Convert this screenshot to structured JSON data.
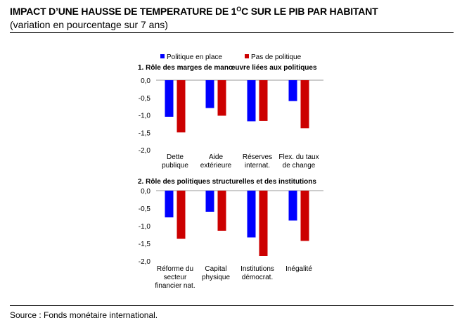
{
  "header": {
    "title": "IMPACT D’UNE HAUSSE DE TEMPERATURE DE 1",
    "title_degree": "O",
    "title_end": "C SUR LE PIB PAR HABITANT",
    "subtitle": "(variation en pourcentage sur 7 ans)"
  },
  "footer": {
    "source": "Source : Fonds monétaire international."
  },
  "colors": {
    "politique": "#0000FF",
    "pas_de_politique": "#CC0000"
  },
  "chart_data": [
    {
      "type": "bar",
      "title": "1. Rôle des marges de manœuvre liées aux politiques",
      "categories": [
        [
          "Dette",
          "publique"
        ],
        [
          "Aide",
          "extérieure"
        ],
        [
          "Réserves",
          "internat."
        ],
        [
          "Flex. du taux",
          "de change"
        ]
      ],
      "series": [
        {
          "name": "Politique en place",
          "color": "#0000FF",
          "values": [
            -1.05,
            -0.8,
            -1.18,
            -0.6
          ]
        },
        {
          "name": "Pas de politique",
          "color": "#CC0000",
          "values": [
            -1.5,
            -1.02,
            -1.17,
            -1.38
          ]
        }
      ],
      "ylim": [
        -2.0,
        0.0
      ],
      "yticks": [
        "0,0",
        "-0,5",
        "-1,0",
        "-1,5",
        "-2,0"
      ],
      "ytick_values": [
        0,
        -0.5,
        -1.0,
        -1.5,
        -2.0
      ],
      "legend": "top-center",
      "grid": false
    },
    {
      "type": "bar",
      "title": "2. Rôle des politiques structurelles et des institutions",
      "categories": [
        [
          "Réforme du",
          "secteur",
          "financier nat."
        ],
        [
          "Capital",
          "physique"
        ],
        [
          "Institutions",
          "démocrat."
        ],
        [
          "Inégalité"
        ]
      ],
      "series": [
        {
          "name": "Politique en place",
          "color": "#0000FF",
          "values": [
            -0.76,
            -0.6,
            -1.33,
            -0.85
          ]
        },
        {
          "name": "Pas de politique",
          "color": "#CC0000",
          "values": [
            -1.37,
            -1.14,
            -1.86,
            -1.43
          ]
        }
      ],
      "ylim": [
        -2.0,
        0.0
      ],
      "yticks": [
        "0,0",
        "-0,5",
        "-1,0",
        "-1,5",
        "-2,0"
      ],
      "ytick_values": [
        0,
        -0.5,
        -1.0,
        -1.5,
        -2.0
      ],
      "grid": false
    }
  ]
}
